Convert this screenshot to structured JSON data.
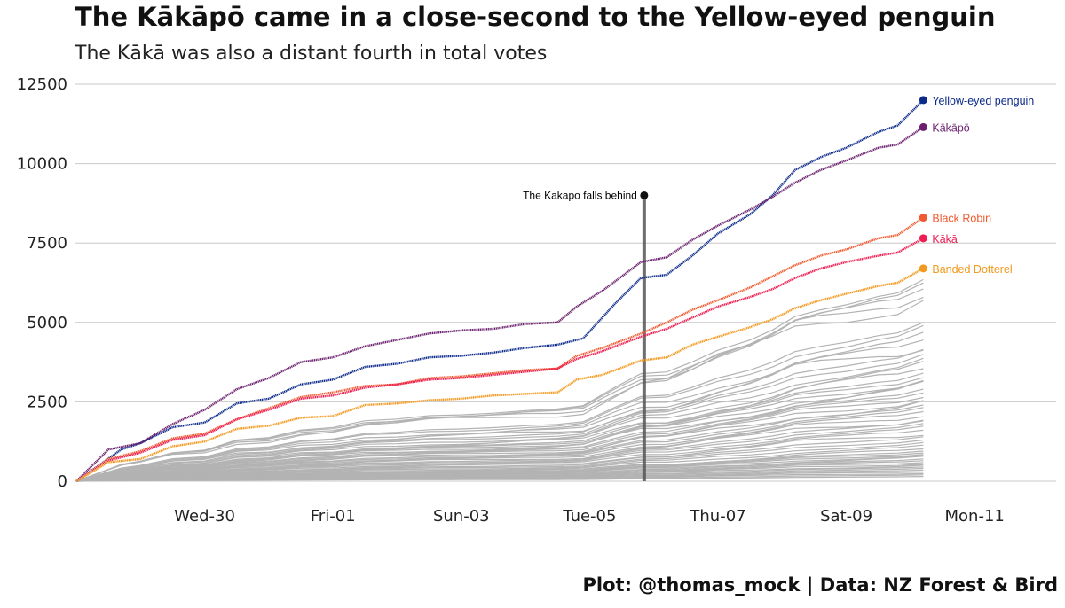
{
  "chart_data": {
    "type": "line",
    "title": "The Kākāpō came in a close-second to the Yellow-eyed penguin",
    "subtitle": "The Kākā was also a distant fourth in total votes",
    "caption": "Plot: @thomas_mock | Data: NZ Forest & Bird",
    "xlabel": "",
    "ylabel": "",
    "x_ticks": [
      "Wed-30",
      "Fri-01",
      "Sun-03",
      "Tue-05",
      "Thu-07",
      "Sat-09",
      "Mon-11"
    ],
    "y_ticks": [
      "0",
      "2500",
      "5000",
      "7500",
      "10000",
      "12500"
    ],
    "ylim": [
      0,
      12500
    ],
    "grid": "horizontal",
    "annotation": {
      "text": "The Kakapo falls behind",
      "day": 8.85,
      "value": 9000
    },
    "highlight_series": [
      {
        "name": "Yellow-eyed penguin",
        "color": "#0c2a8a",
        "points": [
          [
            0,
            0
          ],
          [
            0.7,
            1000
          ],
          [
            1,
            1200
          ],
          [
            1.5,
            1700
          ],
          [
            2,
            1850
          ],
          [
            2.5,
            2450
          ],
          [
            3,
            2600
          ],
          [
            3.5,
            3050
          ],
          [
            4,
            3200
          ],
          [
            4.5,
            3600
          ],
          [
            5,
            3700
          ],
          [
            5.5,
            3900
          ],
          [
            6,
            3950
          ],
          [
            6.5,
            4050
          ],
          [
            7,
            4200
          ],
          [
            7.5,
            4300
          ],
          [
            7.9,
            4500
          ],
          [
            8.4,
            5600
          ],
          [
            8.8,
            6400
          ],
          [
            9.2,
            6500
          ],
          [
            9.6,
            7100
          ],
          [
            10,
            7800
          ],
          [
            10.5,
            8400
          ],
          [
            10.85,
            9000
          ],
          [
            11.2,
            9800
          ],
          [
            11.6,
            10200
          ],
          [
            12,
            10500
          ],
          [
            12.5,
            11000
          ],
          [
            12.8,
            11200
          ],
          [
            13.2,
            12000
          ]
        ]
      },
      {
        "name": "Kākāpō",
        "color": "#6b1f6e",
        "points": [
          [
            0,
            0
          ],
          [
            0.5,
            1000
          ],
          [
            1,
            1200
          ],
          [
            1.5,
            1800
          ],
          [
            2,
            2250
          ],
          [
            2.5,
            2900
          ],
          [
            3,
            3250
          ],
          [
            3.5,
            3750
          ],
          [
            4,
            3900
          ],
          [
            4.5,
            4250
          ],
          [
            5,
            4450
          ],
          [
            5.5,
            4650
          ],
          [
            6,
            4750
          ],
          [
            6.5,
            4800
          ],
          [
            7,
            4950
          ],
          [
            7.5,
            5000
          ],
          [
            7.8,
            5500
          ],
          [
            8.2,
            6000
          ],
          [
            8.8,
            6900
          ],
          [
            9.2,
            7050
          ],
          [
            9.6,
            7600
          ],
          [
            10,
            8050
          ],
          [
            10.5,
            8550
          ],
          [
            10.85,
            8950
          ],
          [
            11.2,
            9400
          ],
          [
            11.6,
            9800
          ],
          [
            12,
            10100
          ],
          [
            12.5,
            10500
          ],
          [
            12.8,
            10600
          ],
          [
            13.2,
            11150
          ]
        ]
      },
      {
        "name": "Black Robin",
        "color": "#f05a30",
        "points": [
          [
            0,
            0
          ],
          [
            0.5,
            700
          ],
          [
            1,
            950
          ],
          [
            1.5,
            1350
          ],
          [
            2,
            1500
          ],
          [
            2.5,
            1950
          ],
          [
            3,
            2300
          ],
          [
            3.5,
            2650
          ],
          [
            4,
            2800
          ],
          [
            4.5,
            3000
          ],
          [
            5,
            3050
          ],
          [
            5.5,
            3250
          ],
          [
            6,
            3300
          ],
          [
            6.5,
            3400
          ],
          [
            7,
            3500
          ],
          [
            7.5,
            3550
          ],
          [
            7.8,
            3950
          ],
          [
            8.2,
            4200
          ],
          [
            8.8,
            4650
          ],
          [
            9.2,
            5000
          ],
          [
            9.6,
            5400
          ],
          [
            10,
            5700
          ],
          [
            10.5,
            6100
          ],
          [
            10.85,
            6450
          ],
          [
            11.2,
            6800
          ],
          [
            11.6,
            7100
          ],
          [
            12,
            7300
          ],
          [
            12.5,
            7650
          ],
          [
            12.8,
            7750
          ],
          [
            13.2,
            8300
          ]
        ]
      },
      {
        "name": "Kākā",
        "color": "#ee1d52",
        "points": [
          [
            0,
            0
          ],
          [
            0.5,
            650
          ],
          [
            1,
            900
          ],
          [
            1.5,
            1300
          ],
          [
            2,
            1450
          ],
          [
            2.5,
            1950
          ],
          [
            3,
            2250
          ],
          [
            3.5,
            2600
          ],
          [
            4,
            2700
          ],
          [
            4.5,
            2950
          ],
          [
            5,
            3050
          ],
          [
            5.5,
            3200
          ],
          [
            6,
            3250
          ],
          [
            6.5,
            3350
          ],
          [
            7,
            3450
          ],
          [
            7.5,
            3550
          ],
          [
            7.8,
            3850
          ],
          [
            8.2,
            4100
          ],
          [
            8.8,
            4550
          ],
          [
            9.2,
            4800
          ],
          [
            9.6,
            5150
          ],
          [
            10,
            5500
          ],
          [
            10.5,
            5800
          ],
          [
            10.85,
            6050
          ],
          [
            11.2,
            6400
          ],
          [
            11.6,
            6700
          ],
          [
            12,
            6900
          ],
          [
            12.5,
            7100
          ],
          [
            12.8,
            7200
          ],
          [
            13.2,
            7650
          ]
        ]
      },
      {
        "name": "Banded Dotterel",
        "color": "#f2991e",
        "points": [
          [
            0,
            0
          ],
          [
            0.5,
            600
          ],
          [
            1,
            700
          ],
          [
            1.5,
            1100
          ],
          [
            2,
            1250
          ],
          [
            2.5,
            1650
          ],
          [
            3,
            1750
          ],
          [
            3.5,
            2000
          ],
          [
            4,
            2050
          ],
          [
            4.5,
            2400
          ],
          [
            5,
            2450
          ],
          [
            5.5,
            2550
          ],
          [
            6,
            2600
          ],
          [
            6.5,
            2700
          ],
          [
            7,
            2750
          ],
          [
            7.5,
            2800
          ],
          [
            7.8,
            3200
          ],
          [
            8.2,
            3350
          ],
          [
            8.8,
            3800
          ],
          [
            9.2,
            3900
          ],
          [
            9.6,
            4300
          ],
          [
            10,
            4550
          ],
          [
            10.5,
            4850
          ],
          [
            10.85,
            5100
          ],
          [
            11.2,
            5450
          ],
          [
            11.6,
            5700
          ],
          [
            12,
            5900
          ],
          [
            12.5,
            6150
          ],
          [
            12.8,
            6250
          ],
          [
            13.2,
            6700
          ]
        ]
      }
    ],
    "other_series_finals": [
      6350,
      6200,
      6100,
      6000,
      5900,
      5000,
      4850,
      4600,
      4450,
      4300,
      4150,
      4000,
      3800,
      3650,
      3500,
      3400,
      3300,
      3200,
      3100,
      3000,
      2900,
      2800,
      2700,
      2600,
      2500,
      2400,
      2300,
      2200,
      2100,
      2000,
      1900,
      1800,
      1700,
      1600,
      1500,
      1400,
      1300,
      1200,
      1100,
      1000,
      950,
      900,
      850,
      800,
      750,
      700,
      650,
      600,
      550,
      500,
      450,
      400,
      350,
      300,
      250,
      200,
      150
    ]
  }
}
